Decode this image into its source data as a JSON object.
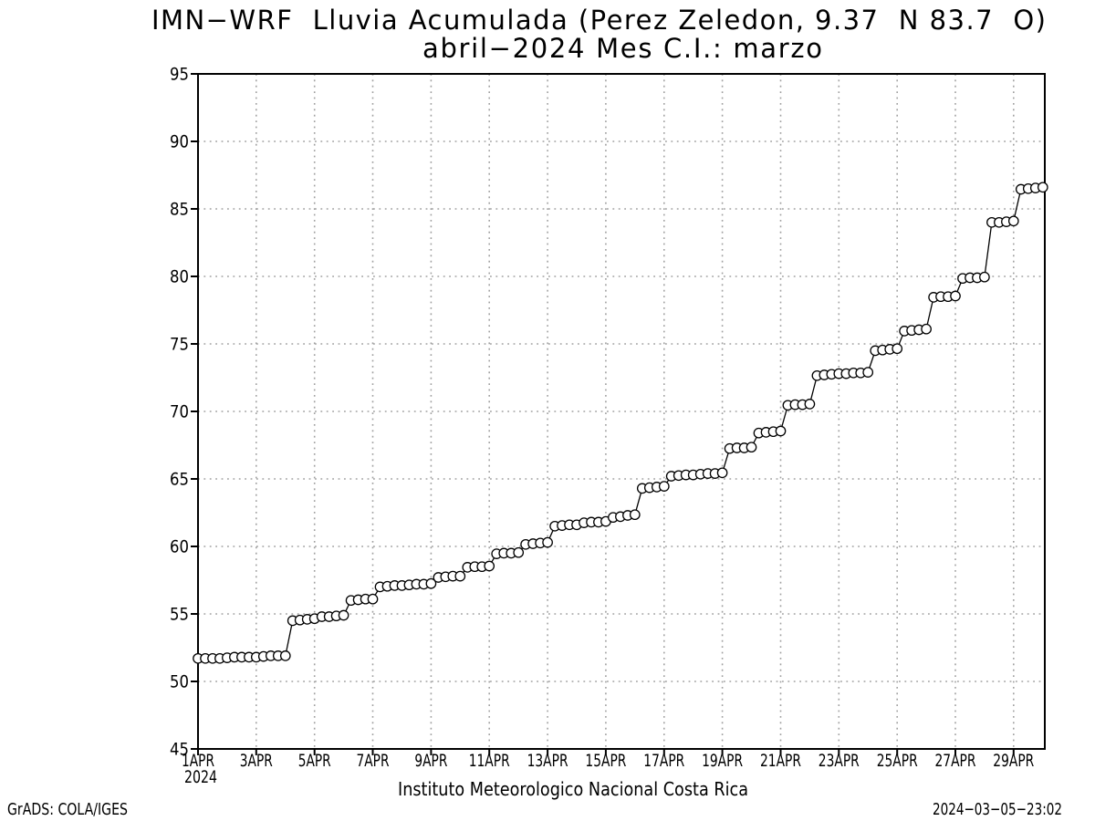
{
  "title": {
    "line1": "IMN−WRF  Lluvia Acumulada (Perez Zeledon, 9.37  N 83.7  O)",
    "line2": "abril−2024 Mes C.I.: marzo"
  },
  "footer": {
    "center": "Instituto Meteorologico Nacional Costa Rica",
    "left": "GrADS: COLA/IGES",
    "right": "2024−03−05−23:02"
  },
  "chart_data": {
    "type": "line",
    "marker": "open-circle",
    "title": "IMN−WRF Lluvia Acumulada (Perez Zeledon, 9.37 N 83.7 O) — abril−2024 Mes C.I.: marzo",
    "x_unit": "day of April 2024, 6-hourly points",
    "x_start_day": 1,
    "x_step_days": 0.25,
    "xlim": [
      1,
      30.07
    ],
    "ylim": [
      45,
      95
    ],
    "y_ticks": [
      45,
      50,
      55,
      60,
      65,
      70,
      75,
      80,
      85,
      90,
      95
    ],
    "x_ticks": [
      {
        "day": 1,
        "label": "1APR",
        "sublabel": "2024"
      },
      {
        "day": 3,
        "label": "3APR"
      },
      {
        "day": 5,
        "label": "5APR"
      },
      {
        "day": 7,
        "label": "7APR"
      },
      {
        "day": 9,
        "label": "9APR"
      },
      {
        "day": 11,
        "label": "11APR"
      },
      {
        "day": 13,
        "label": "13APR"
      },
      {
        "day": 15,
        "label": "15APR"
      },
      {
        "day": 17,
        "label": "17APR"
      },
      {
        "day": 19,
        "label": "19APR"
      },
      {
        "day": 21,
        "label": "21APR"
      },
      {
        "day": 23,
        "label": "23APR"
      },
      {
        "day": 25,
        "label": "25APR"
      },
      {
        "day": 27,
        "label": "27APR"
      },
      {
        "day": 29,
        "label": "29APR"
      }
    ],
    "grid": "dotted",
    "legend": "none",
    "colors": {
      "line": "#000000",
      "marker_fill": "#ffffff",
      "grid": "#a0a0a0",
      "frame": "#000000",
      "background": "#ffffff"
    },
    "values": [
      51.7,
      51.7,
      51.7,
      51.7,
      51.75,
      51.8,
      51.8,
      51.8,
      51.8,
      51.85,
      51.9,
      51.9,
      51.9,
      54.5,
      54.55,
      54.6,
      54.65,
      54.8,
      54.8,
      54.85,
      54.9,
      56.0,
      56.05,
      56.1,
      56.1,
      57.0,
      57.05,
      57.1,
      57.1,
      57.15,
      57.2,
      57.2,
      57.25,
      57.7,
      57.75,
      57.8,
      57.8,
      58.45,
      58.5,
      58.5,
      58.55,
      59.45,
      59.5,
      59.5,
      59.55,
      60.15,
      60.2,
      60.25,
      60.3,
      61.5,
      61.55,
      61.6,
      61.6,
      61.75,
      61.8,
      61.8,
      61.85,
      62.15,
      62.2,
      62.3,
      62.35,
      64.3,
      64.35,
      64.4,
      64.45,
      65.2,
      65.25,
      65.3,
      65.3,
      65.35,
      65.4,
      65.4,
      65.45,
      67.25,
      67.3,
      67.3,
      67.35,
      68.4,
      68.45,
      68.5,
      68.55,
      70.45,
      70.5,
      70.5,
      70.55,
      72.65,
      72.7,
      72.75,
      72.8,
      72.8,
      72.85,
      72.85,
      72.9,
      74.5,
      74.55,
      74.6,
      74.65,
      75.95,
      76.0,
      76.05,
      76.1,
      78.45,
      78.5,
      78.5,
      78.55,
      79.85,
      79.9,
      79.9,
      79.95,
      84.0,
      84.0,
      84.05,
      84.1,
      86.45,
      86.5,
      86.55,
      86.6
    ]
  }
}
